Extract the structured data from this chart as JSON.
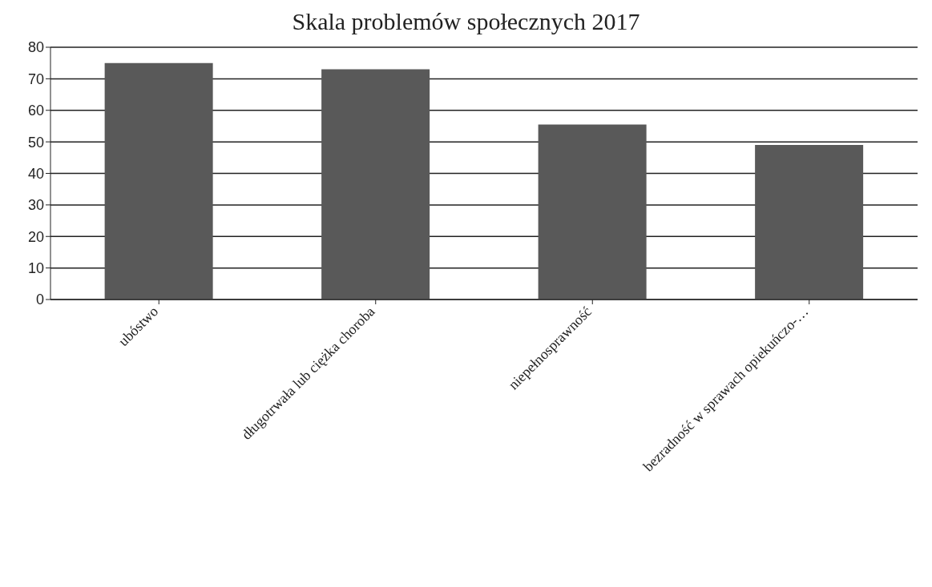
{
  "chart_data": {
    "type": "bar",
    "title": "Skala problemów społecznych 2017",
    "categories": [
      "ubóstwo",
      "długotrwała lub ciężka choroba",
      "niepełnosprawność",
      "bezradność w sprawach opiekuńczo-…"
    ],
    "values": [
      75,
      73,
      55.5,
      49
    ],
    "color": "#595959",
    "ylim": [
      0,
      80
    ],
    "yticks": [
      0,
      10,
      20,
      30,
      40,
      50,
      60,
      70,
      80
    ],
    "grid": "y"
  }
}
